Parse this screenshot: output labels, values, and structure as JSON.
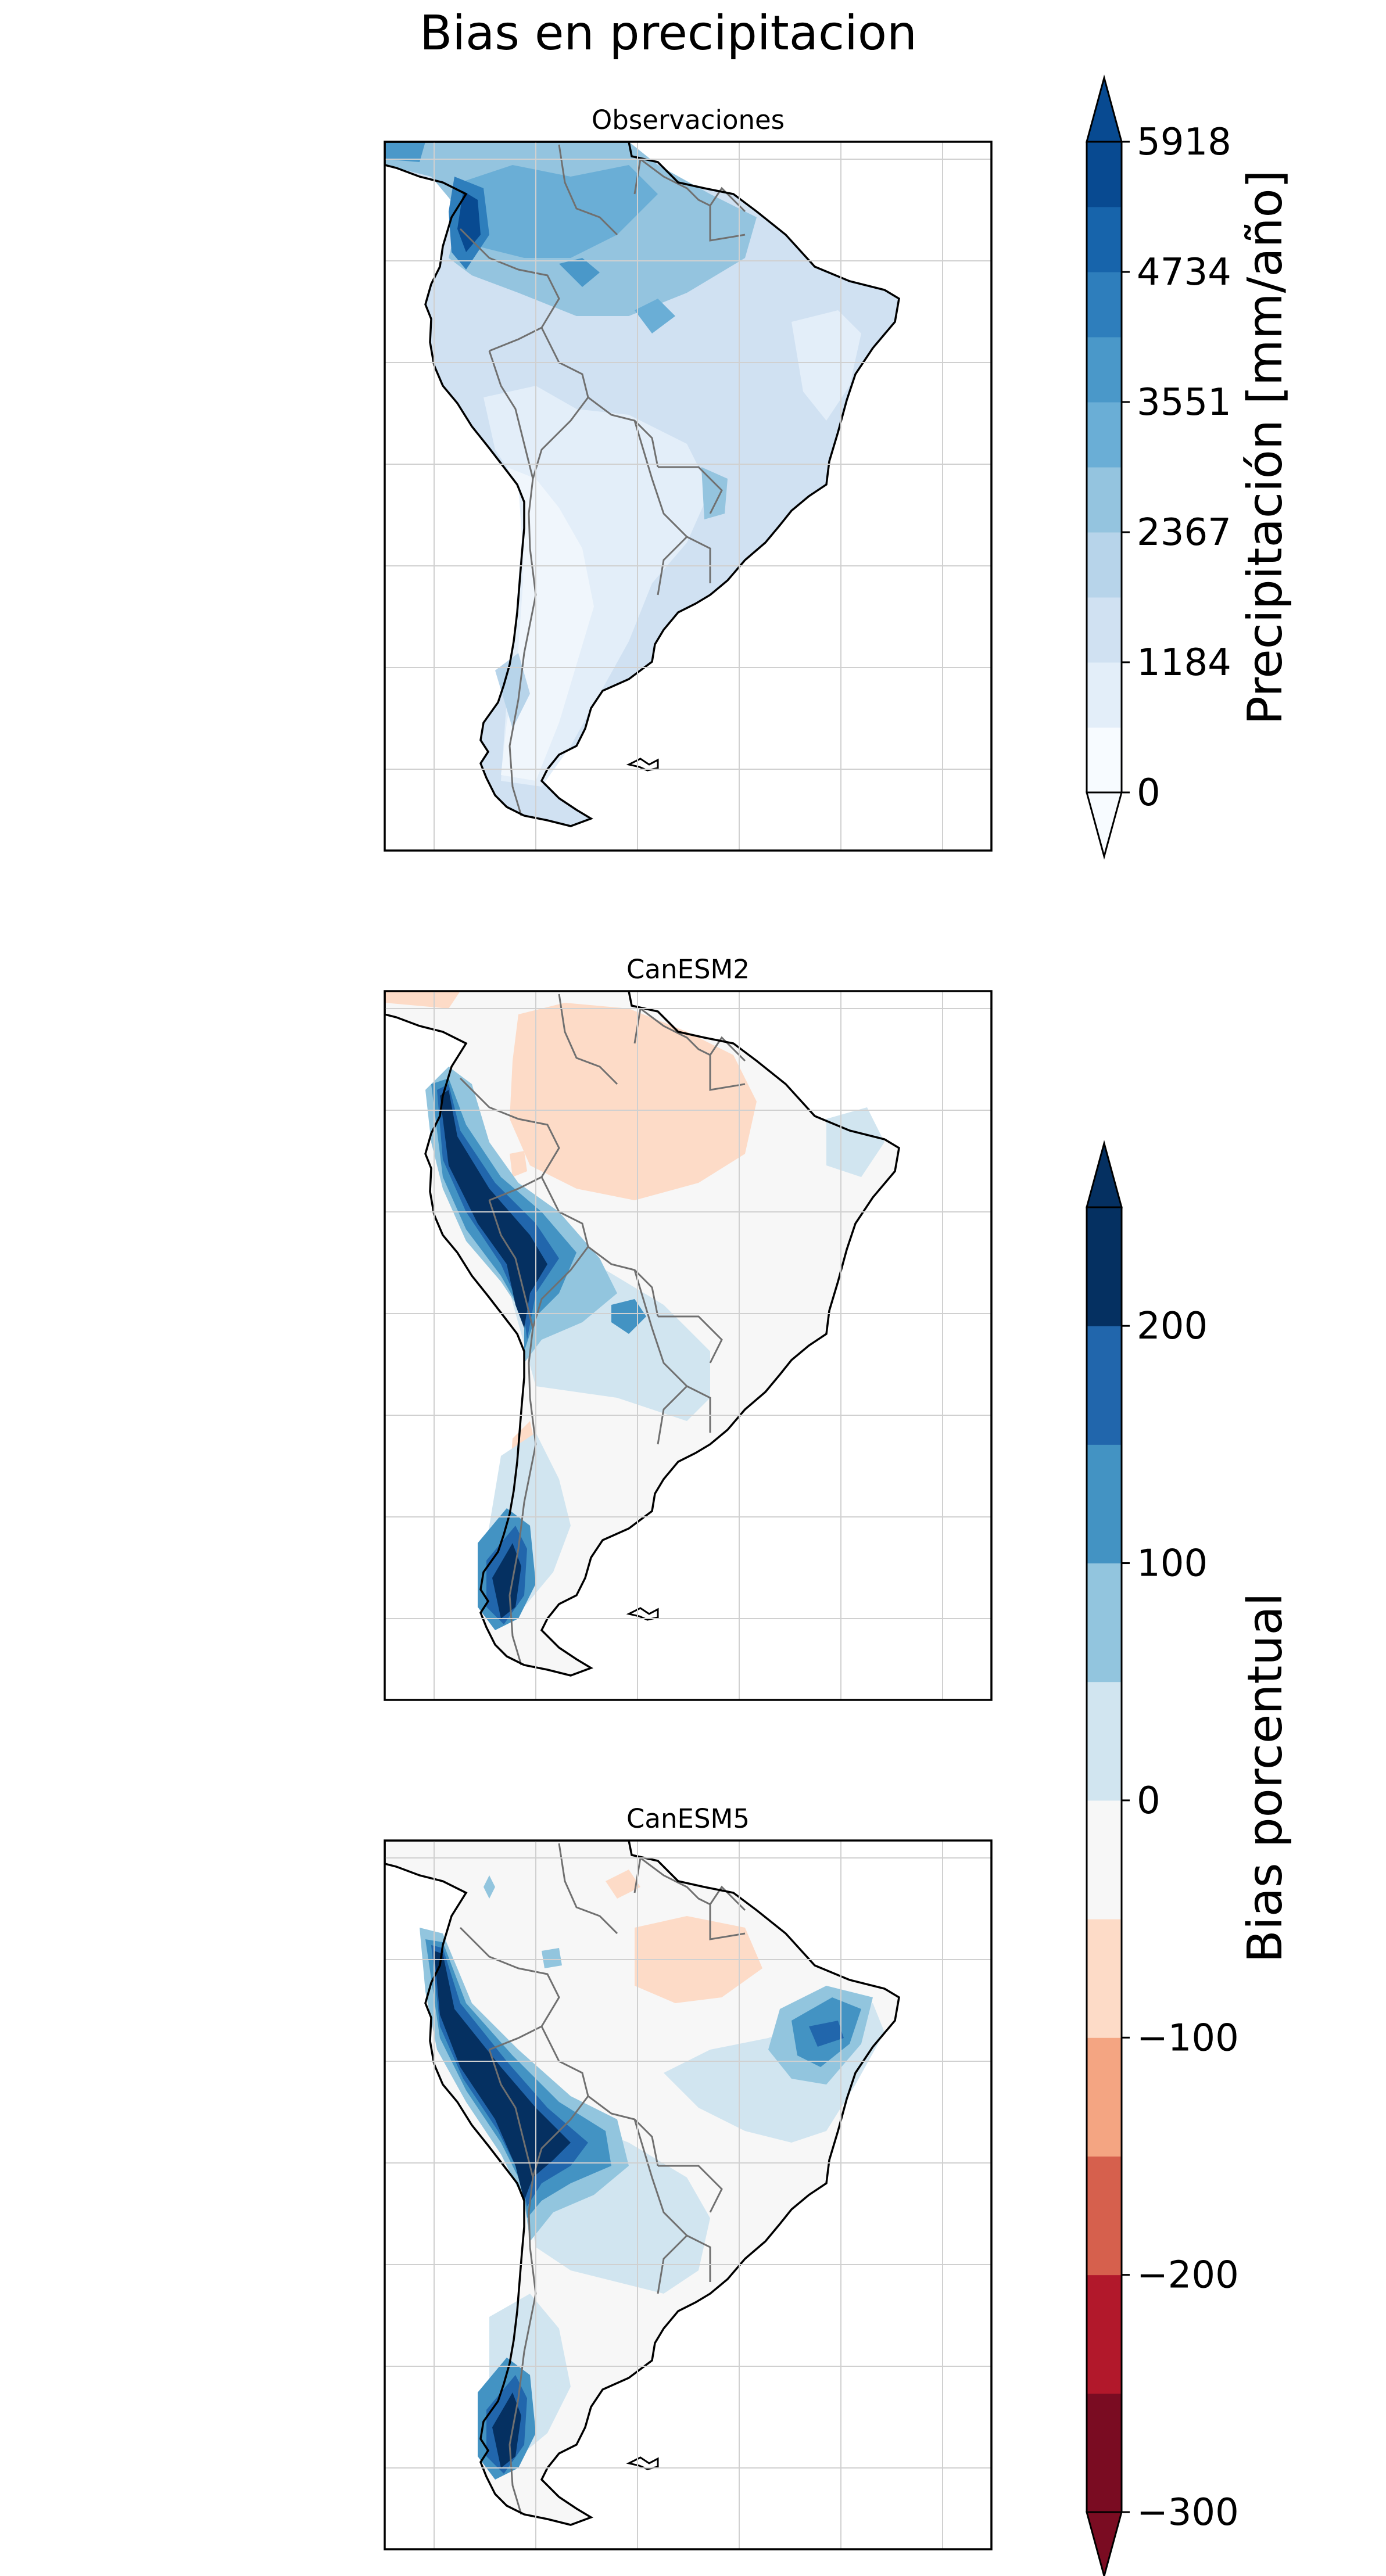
{
  "figure": {
    "title": "Bias en precipitacion"
  },
  "panels": [
    {
      "id": "obs",
      "title": "Observaciones",
      "field": "precip"
    },
    {
      "id": "canesm2",
      "title": "CanESM2",
      "field": "bias"
    },
    {
      "id": "canesm5",
      "title": "CanESM5",
      "field": "bias"
    }
  ],
  "colorbars": {
    "precip": {
      "label": "Precipitación [mm/año]",
      "ticks": [
        "5918",
        "4734",
        "3551",
        "2367",
        "1184",
        "0"
      ],
      "tick_values": [
        5918,
        4734,
        3551,
        2367,
        1184,
        0
      ],
      "range": [
        0,
        5918
      ],
      "extend": "both",
      "colors": [
        "#f7fbff",
        "#e3eef9",
        "#d0e1f2",
        "#b7d4ea",
        "#94c4df",
        "#6aaed6",
        "#4a98c9",
        "#2e7ebc",
        "#1764ab",
        "#084a91"
      ]
    },
    "bias": {
      "label": "Bias porcentual",
      "ticks": [
        "200",
        "100",
        "0",
        "−100",
        "−200",
        "−300"
      ],
      "tick_values": [
        200,
        100,
        0,
        -100,
        -200,
        -300
      ],
      "range": [
        -300,
        250
      ],
      "extend": "both",
      "colors": [
        "#7a0c22",
        "#b2182b",
        "#d6604d",
        "#f4a582",
        "#fddbc7",
        "#f7f7f7",
        "#d1e5f0",
        "#92c5de",
        "#4393c3",
        "#2166ac",
        "#053061"
      ]
    }
  },
  "colors": {
    "coast": "#000000",
    "borders": "#707070",
    "grid": "#d0d0d0",
    "ocean": "#ffffff"
  }
}
